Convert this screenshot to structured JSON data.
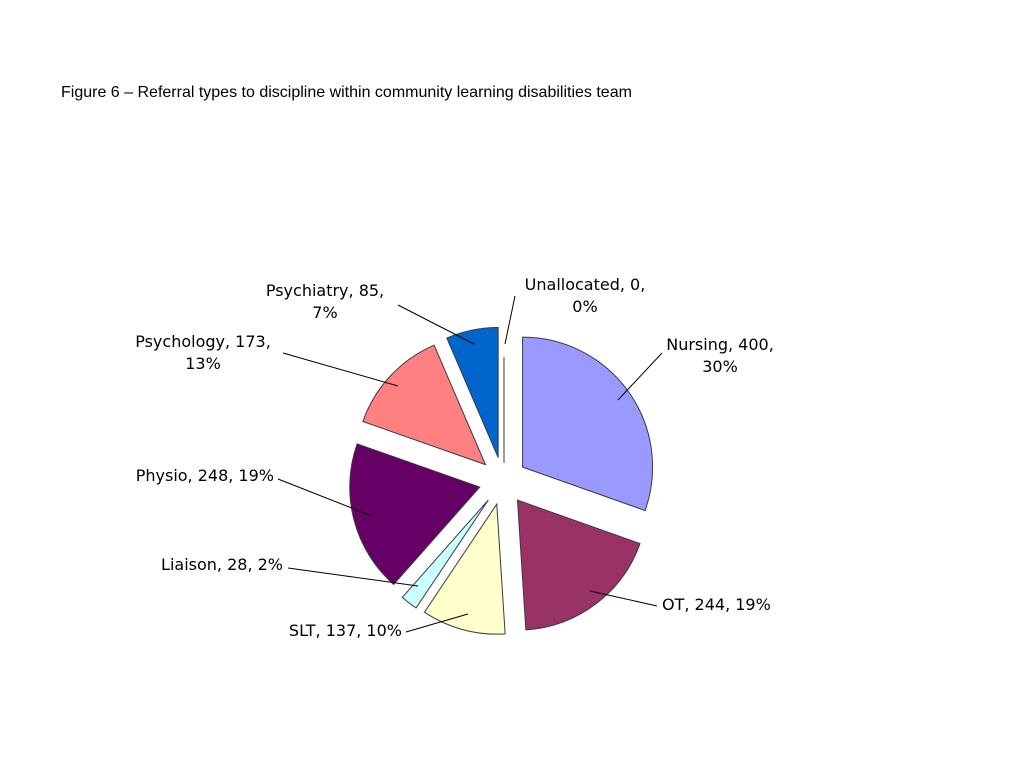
{
  "caption": "Figure 6 – Referral types to discipline within community learning disabilities team",
  "chart_data": {
    "type": "pie",
    "exploded": true,
    "slices": [
      {
        "name": "Nursing",
        "value": 400,
        "percent": "30%",
        "color": "#9999ff",
        "label_lines": [
          "Nursing, 400,",
          "30%"
        ]
      },
      {
        "name": "OT",
        "value": 244,
        "percent": "19%",
        "color": "#993366",
        "label_lines": [
          "OT, 244, 19%"
        ]
      },
      {
        "name": "SLT",
        "value": 137,
        "percent": "10%",
        "color": "#ffffcc",
        "label_lines": [
          "SLT, 137, 10%"
        ]
      },
      {
        "name": "Liaison",
        "value": 28,
        "percent": "2%",
        "color": "#ccffff",
        "label_lines": [
          "Liaison, 28, 2%"
        ]
      },
      {
        "name": "Physio",
        "value": 248,
        "percent": "19%",
        "color": "#660066",
        "label_lines": [
          "Physio, 248, 19%"
        ]
      },
      {
        "name": "Psychology",
        "value": 173,
        "percent": "13%",
        "color": "#ff8080",
        "label_lines": [
          "Psychology, 173,",
          "13%"
        ]
      },
      {
        "name": "Psychiatry",
        "value": 85,
        "percent": "7%",
        "color": "#0066cc",
        "label_lines": [
          "Psychiatry, 85,",
          "7%"
        ]
      },
      {
        "name": "Unallocated",
        "value": 0,
        "percent": "0%",
        "color": "#ffffff",
        "label_lines": [
          "Unallocated, 0,",
          "0%"
        ]
      }
    ]
  }
}
